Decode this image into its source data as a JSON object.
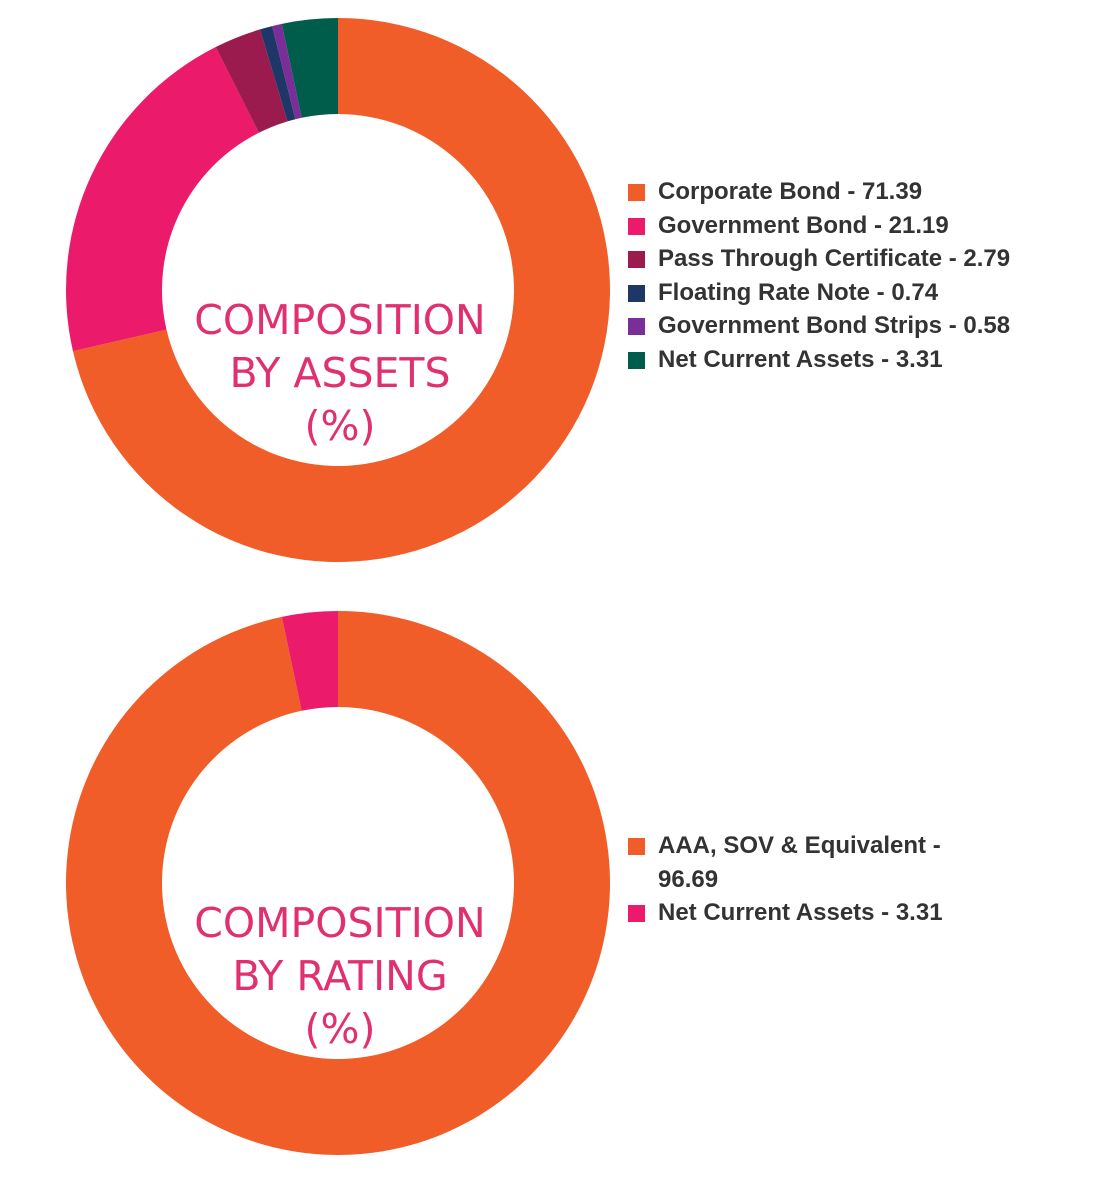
{
  "chart_data": [
    {
      "type": "pie",
      "title_lines": [
        "COMPOSITION",
        "BY ASSETS",
        "(%)"
      ],
      "slices": [
        {
          "label": "Corporate Bond - 71.39",
          "name": "Corporate Bond",
          "value": 71.39,
          "color": "#f15d28"
        },
        {
          "label": "Government Bond - 21.19",
          "name": "Government Bond",
          "value": 21.19,
          "color": "#ec1a6a"
        },
        {
          "label": "Pass Through Certificate - 2.79",
          "name": "Pass Through Certificate",
          "value": 2.79,
          "color": "#9b1b4f"
        },
        {
          "label": "Floating Rate Note - 0.74",
          "name": "Floating Rate Note",
          "value": 0.74,
          "color": "#1e3767"
        },
        {
          "label": "Government Bond Strips - 0.58",
          "name": "Government Bond Strips",
          "value": 0.58,
          "color": "#7a2e98"
        },
        {
          "label": "Net Current Assets - 3.31",
          "name": "Net Current Assets",
          "value": 3.31,
          "color": "#005c4b"
        }
      ],
      "legend_position": "right"
    },
    {
      "type": "pie",
      "title_lines": [
        "COMPOSITION",
        "BY RATING",
        "(%)"
      ],
      "slices": [
        {
          "label": "AAA, SOV & Equivalent - 96.69",
          "name": "AAA, SOV & Equivalent",
          "value": 96.69,
          "color": "#f15d28"
        },
        {
          "label": "Net Current Assets - 3.31",
          "name": "Net Current Assets",
          "value": 3.31,
          "color": "#ec1a6a"
        }
      ],
      "legend_position": "right"
    }
  ],
  "colors": {
    "label_text": "#e0306f",
    "legend_text": "#333333",
    "background": "#ffffff"
  }
}
